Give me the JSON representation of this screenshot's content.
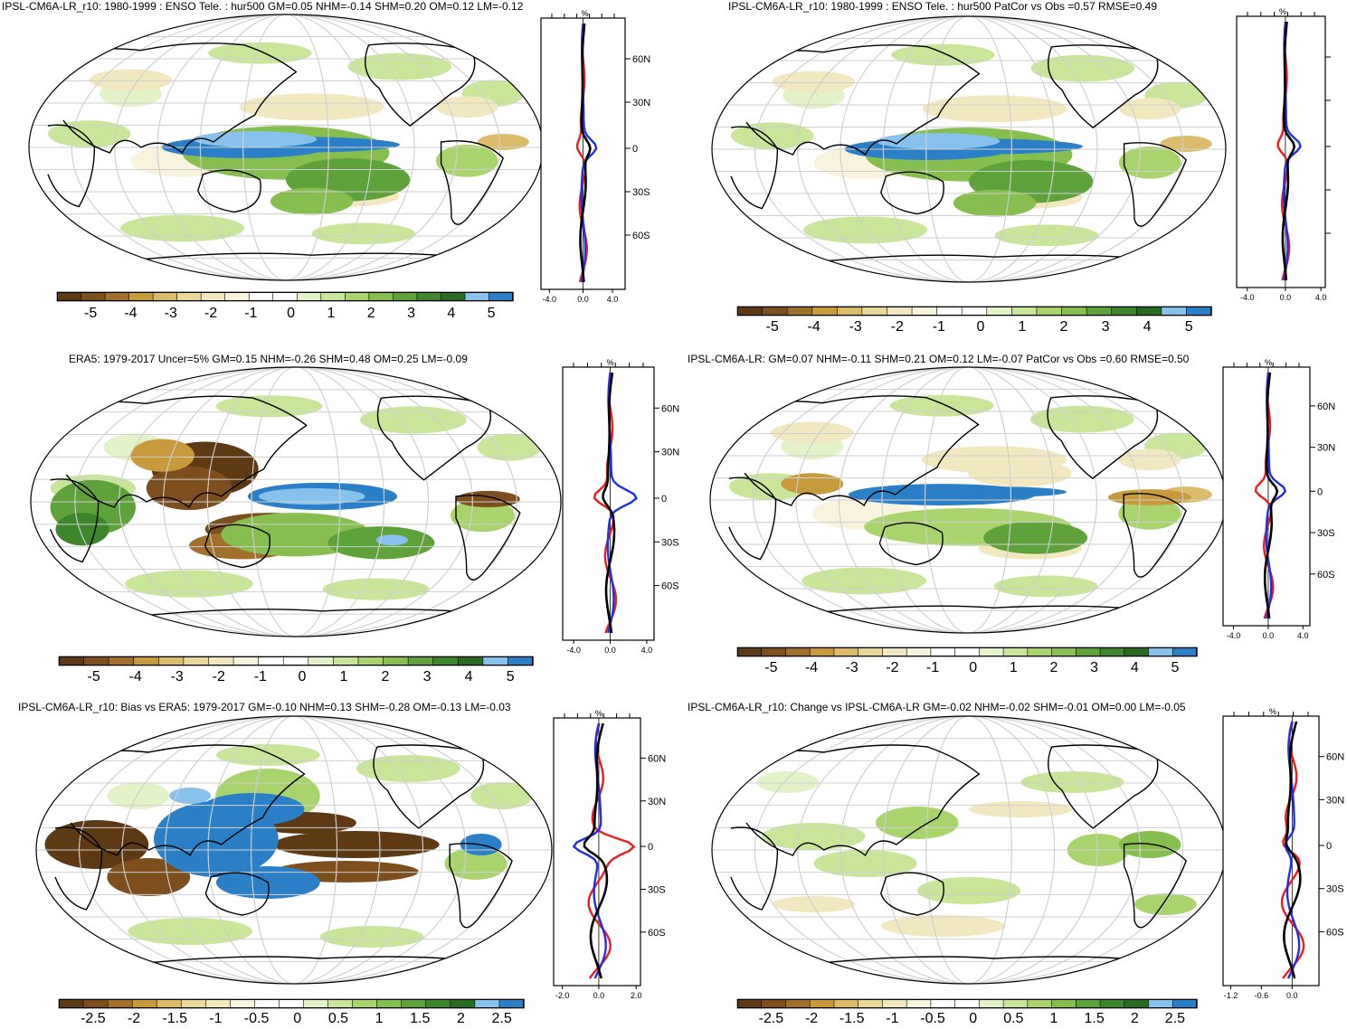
{
  "colors": {
    "levels": [
      "#5e3a14",
      "#7d4f1e",
      "#a0702c",
      "#c79a3c",
      "#dcbc6a",
      "#ead79a",
      "#f2e8bf",
      "#f8f3dc",
      "#ffffff",
      "#ffffff",
      "#e4f2c7",
      "#c8e59a",
      "#a8d36d",
      "#86bf4f",
      "#5fa23c",
      "#3e862d",
      "#2a6b22",
      "#88c1ec",
      "#2b7fc6"
    ],
    "land_line": "#000000",
    "grid_line": "#cfcfcf",
    "zonal_model": "#000000",
    "zonal_obs": "#1f2fe8",
    "zonal_other": "#ee1c1c"
  },
  "panels": [
    {
      "id": "p1",
      "title": "IPSL-CM6A-LR_r10: 1980-1999 : ENSO Tele. : hur500 GM=0.05 NHM=-0.14 SHM=0.20 OM=0.12 LM=-0.12",
      "pct": "%",
      "lat_labels": [
        "60N",
        "30N",
        "0",
        "30S",
        "60S"
      ],
      "x_ticks": [
        "-4.0",
        "0.0",
        "4.0"
      ],
      "cbar_labels": [
        "-5",
        "-4",
        "-3",
        "-2",
        "-1",
        "0",
        "1",
        "2",
        "3",
        "4",
        "5"
      ]
    },
    {
      "id": "p2",
      "title": "IPSL-CM6A-LR_r10: 1980-1999 : ENSO Tele. : hur500 PatCor vs Obs =0.57 RMSE=0.49",
      "pct": "%",
      "lat_labels": [],
      "x_ticks": [
        "-4.0",
        "0.0",
        "4.0"
      ],
      "cbar_labels": [
        "-5",
        "-4",
        "-3",
        "-2",
        "-1",
        "0",
        "1",
        "2",
        "3",
        "4",
        "5"
      ]
    },
    {
      "id": "p3",
      "title": "ERA5: 1979-2017 Uncer=5% GM=0.15 NHM=-0.26 SHM=0.48 OM=0.25 LM=-0.09",
      "pct": "%",
      "lat_labels": [
        "60N",
        "30N",
        "0",
        "30S",
        "60S"
      ],
      "x_ticks": [
        "-4.0",
        "0.0",
        "4.0"
      ],
      "cbar_labels": [
        "-5",
        "-4",
        "-3",
        "-2",
        "-1",
        "0",
        "1",
        "2",
        "3",
        "4",
        "5"
      ]
    },
    {
      "id": "p4",
      "title": "IPSL-CM6A-LR: GM=0.07 NHM=-0.11 SHM=0.21 OM=0.12 LM=-0.07 PatCor vs Obs =0.60 RMSE=0.50",
      "pct": "%",
      "lat_labels": [
        "60N",
        "30N",
        "0",
        "30S",
        "60S"
      ],
      "x_ticks": [
        "-4.0",
        "0.0",
        "4.0"
      ],
      "cbar_labels": [
        "-5",
        "-4",
        "-3",
        "-2",
        "-1",
        "0",
        "1",
        "2",
        "3",
        "4",
        "5"
      ]
    },
    {
      "id": "p5",
      "title": "IPSL-CM6A-LR_r10: Bias vs ERA5: 1979-2017 GM=-0.10 NHM=0.13 SHM=-0.28 OM=-0.13 LM=-0.03",
      "pct": "%",
      "lat_labels": [
        "60N",
        "30N",
        "0",
        "30S",
        "60S"
      ],
      "x_ticks": [
        "-2.0",
        "0.0",
        "2.0"
      ],
      "cbar_labels": [
        "-2.5",
        "-2",
        "-1.5",
        "-1",
        "-0.5",
        "0",
        "0.5",
        "1",
        "1.5",
        "2",
        "2.5"
      ]
    },
    {
      "id": "p6",
      "title": "IPSL-CM6A-LR_r10: Change vs IPSL-CM6A-LR GM=-0.02 NHM=-0.02 SHM=-0.01 OM=0.00 LM=-0.05",
      "pct": "%",
      "lat_labels": [
        "60N",
        "30N",
        "0",
        "30S",
        "60S"
      ],
      "x_ticks": [
        "-1.2",
        "-0.6",
        "0.0"
      ],
      "cbar_labels": [
        "-2.5",
        "-2",
        "-1.5",
        "-1",
        "-0.5",
        "0",
        "0.5",
        "1",
        "1.5",
        "2",
        "2.5"
      ]
    }
  ]
}
